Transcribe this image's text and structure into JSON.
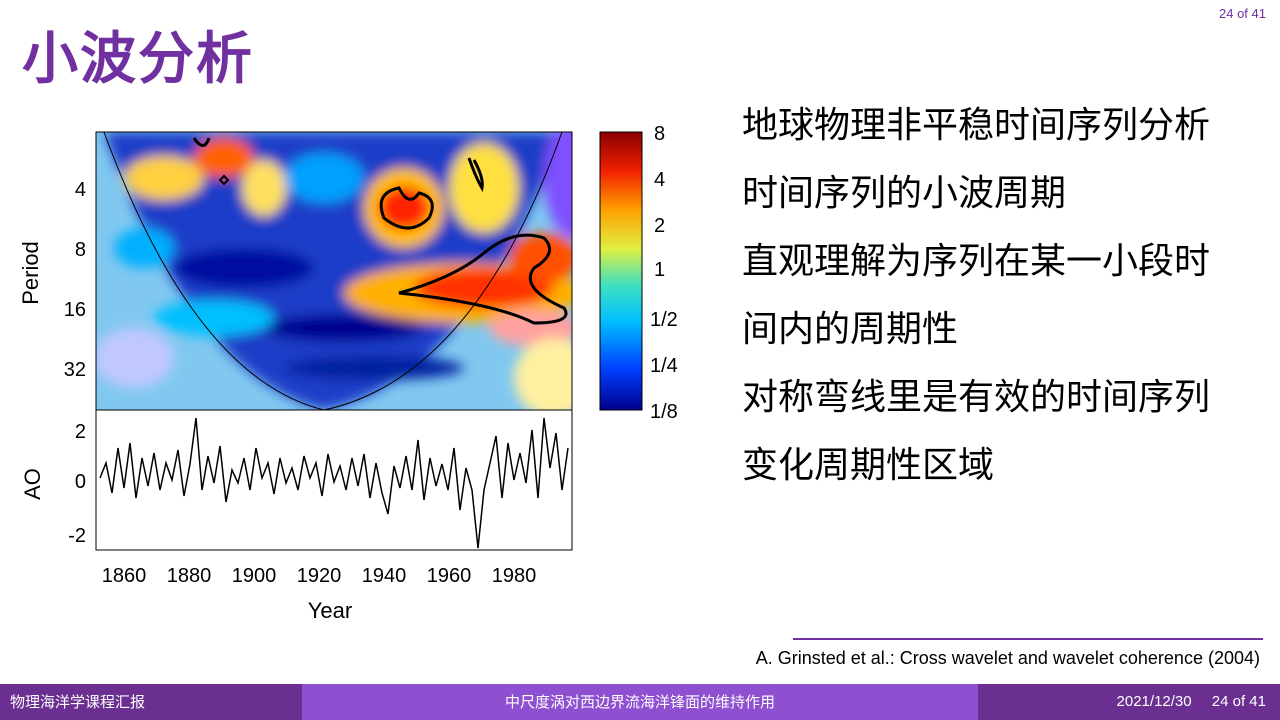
{
  "header": {
    "title": "小波分析",
    "page_indicator": "24 of 41"
  },
  "bullets": [
    "地球物理非平稳时间序列分析",
    "时间序列的小波周期",
    "直观理解为序列在某一小段时间内的周期性",
    "对称弯线里是有效的时间序列变化周期性区域"
  ],
  "citation": "A. Grinsted et al.: Cross wavelet and wavelet coherence (2004)",
  "footer": {
    "left": "物理海洋学课程汇报",
    "center": "中尺度涡对西边界流海洋锋面的维持作用",
    "date": "2021/12/30",
    "page": "24 of 41"
  },
  "chart_data": [
    {
      "type": "heatmap",
      "ylabel": "Period",
      "yticks": [
        "4",
        "8",
        "16",
        "32"
      ],
      "colorbar_ticks": [
        "8",
        "4",
        "2",
        "1",
        "1/2",
        "1/4",
        "1/8"
      ],
      "colorscale": [
        "#00008b",
        "#0050ff",
        "#00c8ff",
        "#40e0a0",
        "#ffff40",
        "#ff8000",
        "#e00000",
        "#800000"
      ]
    },
    {
      "type": "line",
      "ylabel": "AO",
      "xlabel": "Year",
      "yticks": [
        "2",
        "0",
        "-2"
      ],
      "xticks": [
        "1860",
        "1880",
        "1900",
        "1920",
        "1940",
        "1960",
        "1980"
      ]
    }
  ]
}
